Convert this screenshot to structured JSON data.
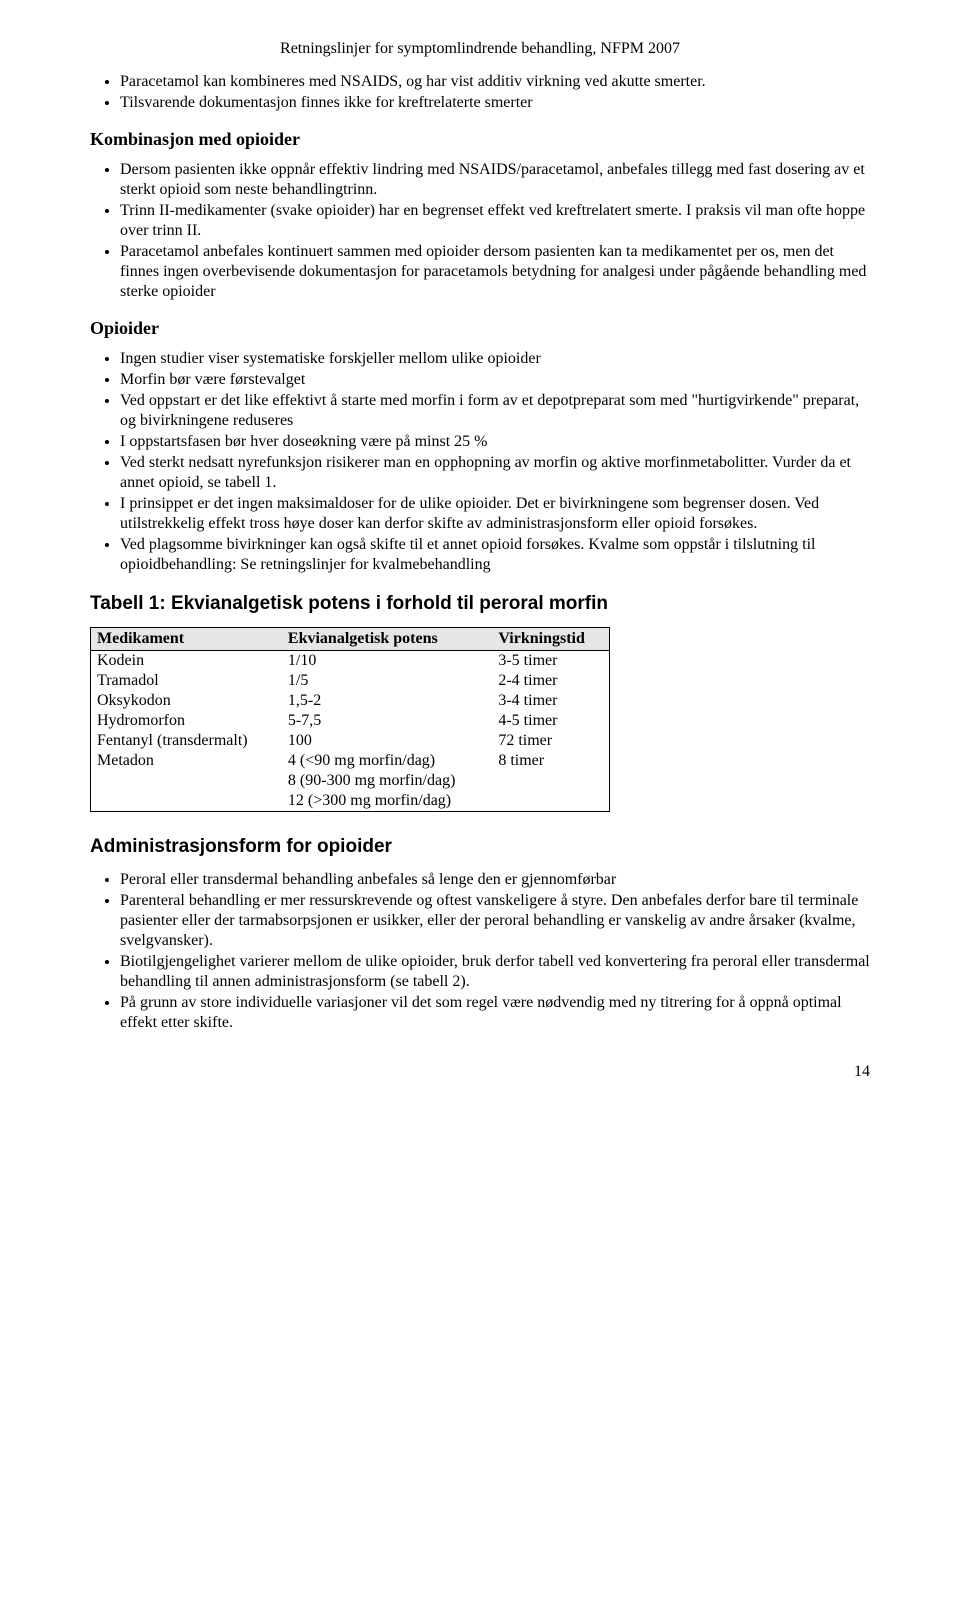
{
  "header": "Retningslinjer for symptomlindrende behandling, NFPM 2007",
  "intro_bullets": [
    "Paracetamol kan kombineres med NSAIDS, og har vist additiv virkning ved akutte smerter.",
    "Tilsvarende dokumentasjon finnes ikke for kreftrelaterte smerter"
  ],
  "section_kombinasjon": {
    "title": "Kombinasjon med opioider",
    "bullets": [
      "Dersom pasienten ikke oppnår effektiv lindring med NSAIDS/paracetamol, anbefales tillegg med fast dosering av et sterkt opioid som neste behandlingtrinn.",
      "Trinn II-medikamenter (svake opioider) har en begrenset effekt ved kreftrelatert smerte. I praksis vil man ofte hoppe over trinn II.",
      "Paracetamol anbefales kontinuert sammen med opioider dersom pasienten kan ta medikamentet per os, men det finnes ingen overbevisende dokumentasjon for paracetamols betydning for analgesi under pågående behandling med sterke opioider"
    ]
  },
  "section_opioider": {
    "title": "Opioider",
    "bullets": [
      "Ingen studier viser systematiske forskjeller mellom ulike opioider",
      "Morfin bør være førstevalget",
      "Ved oppstart er det like effektivt å starte med morfin i form av et depotpreparat som med \"hurtigvirkende\" preparat, og bivirkningene reduseres",
      "I oppstartsfasen bør hver doseøkning være på minst 25 %",
      "Ved sterkt nedsatt nyrefunksjon risikerer man en opphopning av morfin og aktive morfinmetabolitter. Vurder da et annet opioid, se tabell 1.",
      "I prinsippet er det ingen maksimaldoser for de ulike opioider. Det er bivirkningene som begrenser dosen. Ved utilstrekkelig effekt tross høye doser kan derfor skifte av administrasjonsform eller opioid forsøkes.",
      "Ved plagsomme bivirkninger kan også skifte til et annet opioid forsøkes. Kvalme som oppstår i tilslutning til opioidbehandling: Se retningslinjer for kvalmebehandling"
    ]
  },
  "table1": {
    "title": "Tabell 1: Ekvianalgetisk potens i forhold til  peroral morfin",
    "columns": [
      "Medikament",
      "Ekvianalgetisk potens",
      "Virkningstid"
    ],
    "rows": [
      [
        "Kodein",
        "1/10",
        "3-5 timer"
      ],
      [
        "Tramadol",
        "1/5",
        "2-4 timer"
      ],
      [
        "Oksykodon",
        "1,5-2",
        "3-4 timer"
      ],
      [
        "Hydromorfon",
        "5-7,5",
        "4-5 timer"
      ],
      [
        "Fentanyl (transdermalt)",
        "100",
        "72 timer"
      ],
      [
        "Metadon",
        "4 (<90 mg morfin/dag)\n8 (90-300 mg morfin/dag)\n12 (>300 mg morfin/dag)",
        "8 timer"
      ]
    ],
    "col_widths": [
      "180px",
      "210px",
      "130px"
    ],
    "header_bg": "#e6e6e6",
    "border_color": "#000000"
  },
  "section_admin": {
    "title": "Administrasjonsform for opioider",
    "bullets": [
      "Peroral eller transdermal behandling anbefales så lenge den er gjennomførbar",
      "Parenteral behandling er mer ressurskrevende og oftest vanskeligere å styre. Den anbefales derfor bare til terminale pasienter eller der tarmabsorpsjonen er usikker, eller der peroral behandling er vanskelig av andre årsaker (kvalme, svelgvansker).",
      "Biotilgjengelighet varierer mellom de ulike opioider, bruk derfor tabell ved konvertering fra peroral eller transdermal behandling til annen administrasjonsform (se tabell 2).",
      "På grunn av store individuelle variasjoner vil det som regel være nødvendig med ny titrering for å oppnå optimal effekt etter skifte."
    ]
  },
  "page_number": "14"
}
